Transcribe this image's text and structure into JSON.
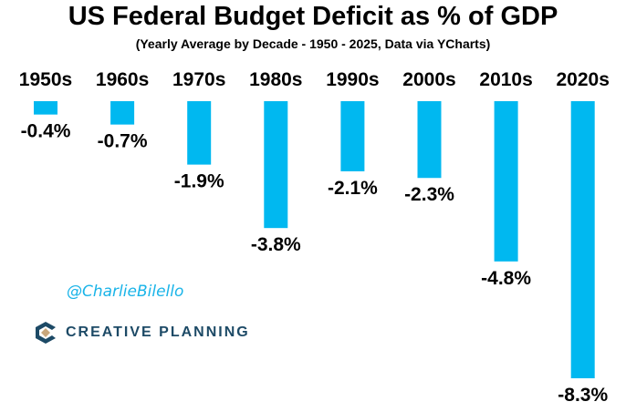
{
  "chart_data": {
    "type": "bar",
    "title": "US Federal Budget Deficit as % of GDP",
    "subtitle": "(Yearly Average by Decade - 1950 - 2025, Data via YCharts)",
    "categories": [
      "1950s",
      "1960s",
      "1970s",
      "1980s",
      "1990s",
      "2000s",
      "2010s",
      "2020s"
    ],
    "values": [
      -0.4,
      -0.7,
      -1.9,
      -3.8,
      -2.1,
      -2.3,
      -4.8,
      -8.3
    ],
    "data_labels": [
      "-0.4%",
      "-0.7%",
      "-1.9%",
      "-3.8%",
      "-2.1%",
      "-2.3%",
      "-4.8%",
      "-8.3%"
    ],
    "ylim": [
      -8.3,
      0
    ],
    "grid": false,
    "bar_color": "#00b8f0",
    "xlabel": "",
    "ylabel": ""
  },
  "watermark": {
    "handle": "@CharlieBilello",
    "logo_text": "CREATIVE PLANNING"
  }
}
